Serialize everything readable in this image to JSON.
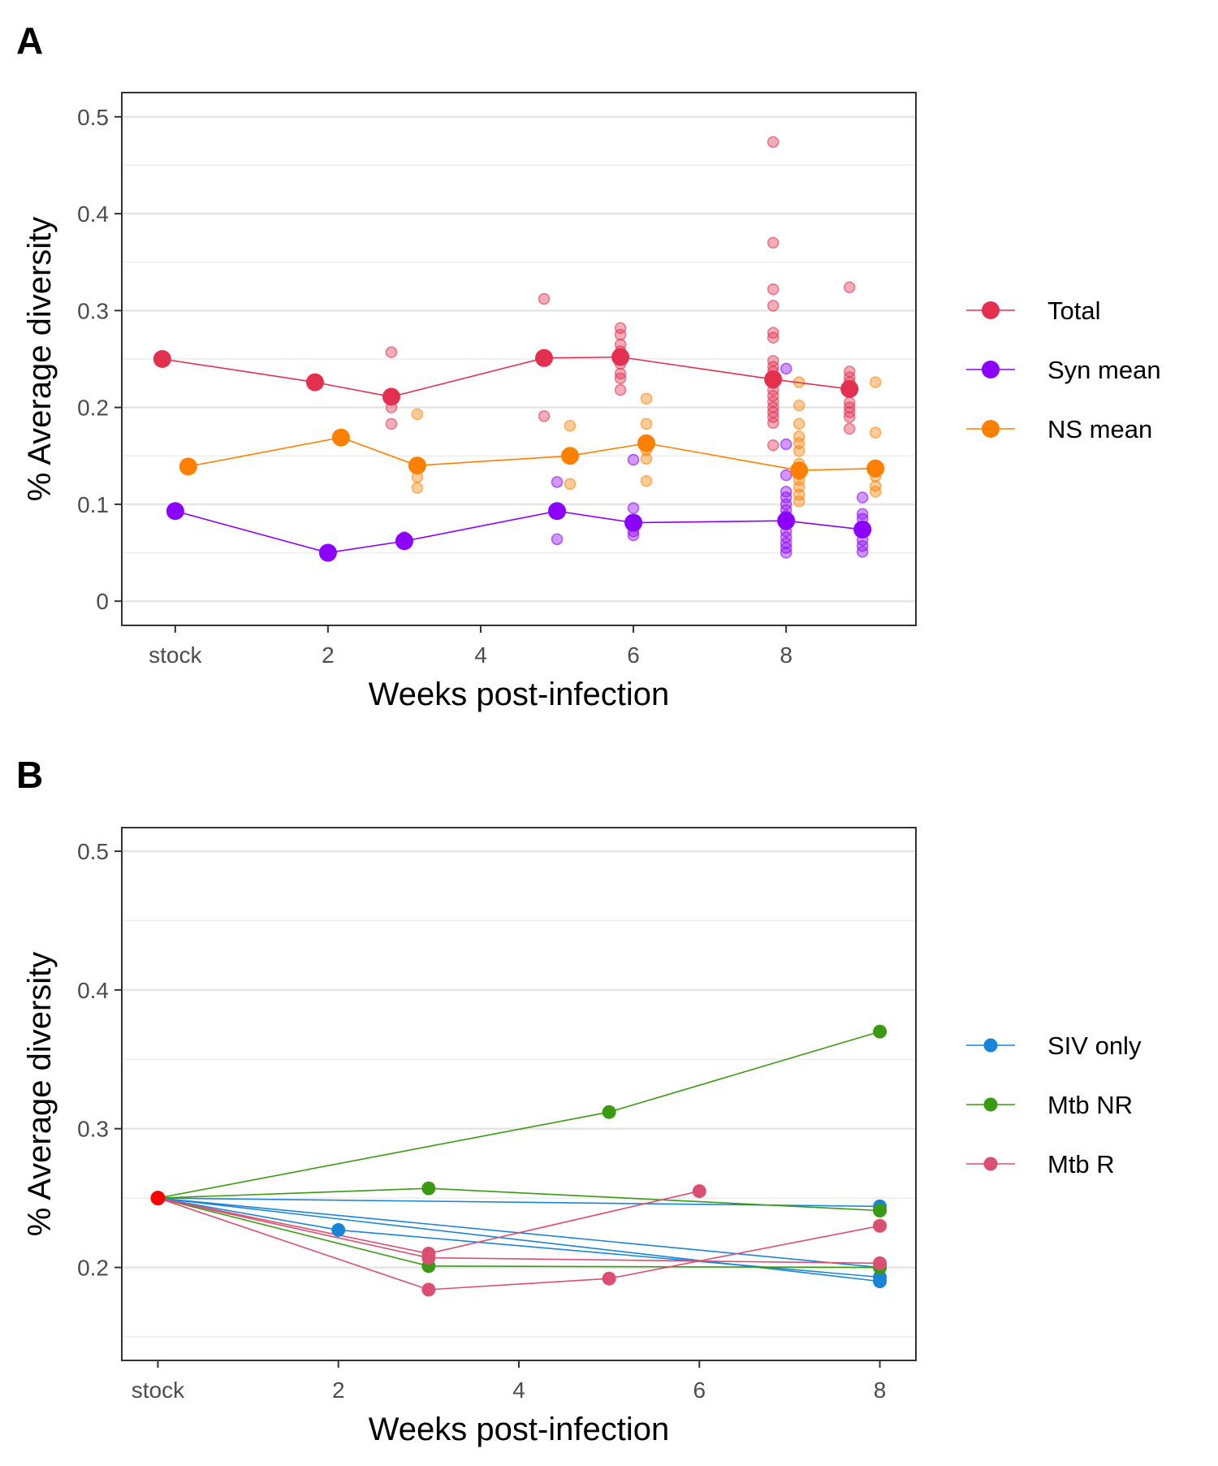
{
  "chart_data": [
    {
      "panel": "A",
      "type": "scatter",
      "xlabel": "Weeks post-infection",
      "ylabel": "% Average diversity",
      "xlim": [
        -0.7,
        9.7
      ],
      "ylim": [
        -0.025,
        0.525
      ],
      "x_ticks": [
        {
          "value": 0,
          "label": "stock"
        },
        {
          "value": 2,
          "label": "2"
        },
        {
          "value": 4,
          "label": "4"
        },
        {
          "value": 6,
          "label": "6"
        },
        {
          "value": 8,
          "label": "8"
        }
      ],
      "y_ticks": [
        {
          "value": 0,
          "label": "0"
        },
        {
          "value": 0.1,
          "label": "0.1"
        },
        {
          "value": 0.2,
          "label": "0.2"
        },
        {
          "value": 0.3,
          "label": "0.3"
        },
        {
          "value": 0.4,
          "label": "0.4"
        },
        {
          "value": 0.5,
          "label": "0.5"
        }
      ],
      "grid": true,
      "legend_position": "right",
      "series": [
        {
          "name": "Total",
          "color": "#E3304F",
          "mean_points": [
            [
              -0.17,
              0.25
            ],
            [
              1.83,
              0.226
            ],
            [
              2.83,
              0.211
            ],
            [
              4.83,
              0.251
            ],
            [
              5.83,
              0.252
            ],
            [
              7.83,
              0.229
            ],
            [
              8.83,
              0.219
            ]
          ],
          "individual_points": [
            [
              2.83,
              0.257
            ],
            [
              2.83,
              0.2
            ],
            [
              2.83,
              0.183
            ],
            [
              4.83,
              0.312
            ],
            [
              4.83,
              0.191
            ],
            [
              5.83,
              0.282
            ],
            [
              5.83,
              0.275
            ],
            [
              5.83,
              0.265
            ],
            [
              5.83,
              0.258
            ],
            [
              5.83,
              0.245
            ],
            [
              5.83,
              0.235
            ],
            [
              5.83,
              0.23
            ],
            [
              5.83,
              0.218
            ],
            [
              7.83,
              0.474
            ],
            [
              7.83,
              0.37
            ],
            [
              7.83,
              0.322
            ],
            [
              7.83,
              0.305
            ],
            [
              7.83,
              0.277
            ],
            [
              7.83,
              0.272
            ],
            [
              7.83,
              0.248
            ],
            [
              7.83,
              0.242
            ],
            [
              7.83,
              0.237
            ],
            [
              7.83,
              0.232
            ],
            [
              7.83,
              0.225
            ],
            [
              7.83,
              0.218
            ],
            [
              7.83,
              0.212
            ],
            [
              7.83,
              0.206
            ],
            [
              7.83,
              0.2
            ],
            [
              7.83,
              0.195
            ],
            [
              7.83,
              0.19
            ],
            [
              7.83,
              0.184
            ],
            [
              7.83,
              0.161
            ],
            [
              8.83,
              0.324
            ],
            [
              8.83,
              0.237
            ],
            [
              8.83,
              0.231
            ],
            [
              8.83,
              0.226
            ],
            [
              8.83,
              0.205
            ],
            [
              8.83,
              0.2
            ],
            [
              8.83,
              0.195
            ],
            [
              8.83,
              0.19
            ],
            [
              8.83,
              0.178
            ]
          ]
        },
        {
          "name": "Syn mean",
          "color": "#8B00FF",
          "mean_points": [
            [
              0,
              0.093
            ],
            [
              2,
              0.05
            ],
            [
              3,
              0.062
            ],
            [
              5,
              0.093
            ],
            [
              6,
              0.081
            ],
            [
              8,
              0.083
            ],
            [
              9,
              0.074
            ]
          ],
          "individual_points": [
            [
              3,
              0.066
            ],
            [
              3,
              0.06
            ],
            [
              5,
              0.123
            ],
            [
              5,
              0.064
            ],
            [
              6,
              0.146
            ],
            [
              6,
              0.096
            ],
            [
              6,
              0.072
            ],
            [
              6,
              0.068
            ],
            [
              8,
              0.24
            ],
            [
              8,
              0.162
            ],
            [
              8,
              0.13
            ],
            [
              8,
              0.113
            ],
            [
              8,
              0.107
            ],
            [
              8,
              0.1
            ],
            [
              8,
              0.094
            ],
            [
              8,
              0.088
            ],
            [
              8,
              0.079
            ],
            [
              8,
              0.072
            ],
            [
              8,
              0.066
            ],
            [
              8,
              0.06
            ],
            [
              8,
              0.055
            ],
            [
              8,
              0.05
            ],
            [
              9,
              0.107
            ],
            [
              9,
              0.09
            ],
            [
              9,
              0.085
            ],
            [
              9,
              0.063
            ],
            [
              9,
              0.057
            ],
            [
              9,
              0.051
            ]
          ]
        },
        {
          "name": "NS mean",
          "color": "#FF8000",
          "mean_points": [
            [
              0.17,
              0.139
            ],
            [
              2.17,
              0.169
            ],
            [
              3.17,
              0.14
            ],
            [
              5.17,
              0.15
            ],
            [
              6.17,
              0.163
            ],
            [
              8.17,
              0.135
            ],
            [
              9.17,
              0.137
            ]
          ],
          "individual_points": [
            [
              3.17,
              0.193
            ],
            [
              3.17,
              0.128
            ],
            [
              3.17,
              0.117
            ],
            [
              5.17,
              0.181
            ],
            [
              5.17,
              0.121
            ],
            [
              6.17,
              0.209
            ],
            [
              6.17,
              0.183
            ],
            [
              6.17,
              0.156
            ],
            [
              6.17,
              0.147
            ],
            [
              6.17,
              0.124
            ],
            [
              8.17,
              0.226
            ],
            [
              8.17,
              0.202
            ],
            [
              8.17,
              0.183
            ],
            [
              8.17,
              0.17
            ],
            [
              8.17,
              0.163
            ],
            [
              8.17,
              0.155
            ],
            [
              8.17,
              0.142
            ],
            [
              8.17,
              0.131
            ],
            [
              8.17,
              0.125
            ],
            [
              8.17,
              0.118
            ],
            [
              8.17,
              0.11
            ],
            [
              8.17,
              0.103
            ],
            [
              9.17,
              0.226
            ],
            [
              9.17,
              0.174
            ],
            [
              9.17,
              0.129
            ],
            [
              9.17,
              0.119
            ],
            [
              9.17,
              0.113
            ]
          ]
        }
      ]
    },
    {
      "panel": "B",
      "type": "line",
      "xlabel": "Weeks post-infection",
      "ylabel": "% Average diversity",
      "xlim": [
        -0.4,
        8.4
      ],
      "ylim": [
        0.133,
        0.517
      ],
      "x_ticks": [
        {
          "value": 0,
          "label": "stock"
        },
        {
          "value": 2,
          "label": "2"
        },
        {
          "value": 4,
          "label": "4"
        },
        {
          "value": 6,
          "label": "6"
        },
        {
          "value": 8,
          "label": "8"
        }
      ],
      "y_ticks": [
        {
          "value": 0.2,
          "label": "0.2"
        },
        {
          "value": 0.3,
          "label": "0.3"
        },
        {
          "value": 0.4,
          "label": "0.4"
        },
        {
          "value": 0.5,
          "label": "0.5"
        }
      ],
      "grid": true,
      "legend_position": "right",
      "stock_point": {
        "x": 0,
        "y": 0.25,
        "color": "#FF0000"
      },
      "series": [
        {
          "name": "SIV only",
          "color": "#1A85D8",
          "lines": [
            [
              [
                0,
                0.25
              ],
              [
                8,
                0.244
              ]
            ],
            [
              [
                0,
                0.25
              ],
              [
                2,
                0.227
              ],
              [
                8,
                0.193
              ]
            ],
            [
              [
                0,
                0.25
              ],
              [
                8,
                0.19
              ]
            ],
            [
              [
                0,
                0.25
              ],
              [
                8,
                0.2
              ]
            ]
          ]
        },
        {
          "name": "Mtb NR",
          "color": "#3A9A12",
          "lines": [
            [
              [
                0,
                0.25
              ],
              [
                5,
                0.312
              ],
              [
                8,
                0.37
              ]
            ],
            [
              [
                0,
                0.25
              ],
              [
                3,
                0.257
              ],
              [
                8,
                0.241
              ]
            ],
            [
              [
                0,
                0.25
              ],
              [
                3,
                0.201
              ],
              [
                8,
                0.2
              ]
            ]
          ]
        },
        {
          "name": "Mtb R",
          "color": "#DB4F73",
          "lines": [
            [
              [
                0,
                0.25
              ],
              [
                3,
                0.21
              ],
              [
                6,
                0.255
              ]
            ],
            [
              [
                0,
                0.25
              ],
              [
                3,
                0.184
              ],
              [
                5,
                0.192
              ],
              [
                8,
                0.23
              ]
            ],
            [
              [
                0,
                0.25
              ],
              [
                3,
                0.207
              ],
              [
                8,
                0.203
              ]
            ]
          ]
        }
      ]
    }
  ],
  "panels": {
    "a": {
      "label": "A"
    },
    "b": {
      "label": "B"
    }
  }
}
